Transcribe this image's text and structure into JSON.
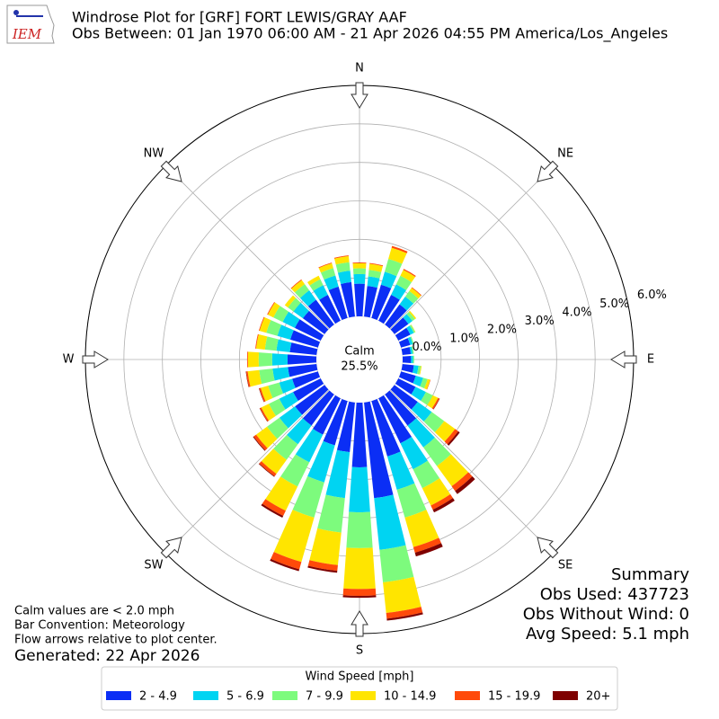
{
  "chart_data": {
    "type": "windrose",
    "logo_text": "IEM",
    "title": "Windrose Plot for [GRF] FORT LEWIS/GRAY AAF",
    "subtitle": "Obs Between: 01 Jan 1970 06:00 AM - 21 Apr 2026 04:55 PM America/Los_Angeles",
    "calm_label": "Calm",
    "calm_value": 25.5,
    "calm_value_label": "25.5%",
    "x": [
      0,
      10,
      20,
      30,
      40,
      50,
      60,
      70,
      80,
      90,
      100,
      110,
      120,
      130,
      140,
      150,
      160,
      170,
      180,
      190,
      200,
      210,
      220,
      230,
      240,
      250,
      260,
      270,
      280,
      290,
      300,
      310,
      320,
      330,
      340,
      350
    ],
    "xticks": [
      {
        "value": 0,
        "label": "N"
      },
      {
        "value": 45,
        "label": "NE"
      },
      {
        "value": 90,
        "label": "E"
      },
      {
        "value": 135,
        "label": "SE"
      },
      {
        "value": 180,
        "label": "S"
      },
      {
        "value": 225,
        "label": "SW"
      },
      {
        "value": 270,
        "label": "W"
      },
      {
        "value": 315,
        "label": "NW"
      }
    ],
    "ylim": [
      0,
      6
    ],
    "yticks": [
      {
        "value": 0,
        "label": "0.0%"
      },
      {
        "value": 1,
        "label": "1.0%"
      },
      {
        "value": 2,
        "label": "2.0%"
      },
      {
        "value": 3,
        "label": "3.0%"
      },
      {
        "value": 4,
        "label": "4.0%"
      },
      {
        "value": 5,
        "label": "5.0%"
      },
      {
        "value": 6,
        "label": "6.0%"
      }
    ],
    "grid": true,
    "legend_title": "Wind Speed [mph]",
    "legend": "bottom",
    "series": [
      {
        "name": "2 - 4.9",
        "color": "#0b2ef5",
        "values": [
          0.85,
          0.8,
          0.9,
          0.75,
          0.65,
          0.45,
          0.35,
          0.25,
          0.22,
          0.22,
          0.3,
          0.4,
          0.5,
          0.75,
          1.0,
          1.3,
          1.5,
          2.5,
          1.68,
          1.3,
          1.2,
          1.05,
          1.0,
          0.95,
          0.8,
          0.7,
          0.75,
          0.75,
          0.7,
          0.75,
          0.75,
          0.7,
          0.8,
          0.75,
          0.85,
          0.9
        ]
      },
      {
        "name": "5 - 6.9",
        "color": "#00d4f2",
        "values": [
          0.25,
          0.25,
          0.35,
          0.3,
          0.25,
          0.13,
          0.1,
          0.07,
          0.05,
          0.05,
          0.12,
          0.2,
          0.3,
          0.45,
          0.7,
          0.75,
          0.9,
          1.35,
          1.17,
          1.2,
          1.0,
          0.8,
          0.6,
          0.5,
          0.4,
          0.35,
          0.4,
          0.4,
          0.35,
          0.35,
          0.35,
          0.3,
          0.3,
          0.28,
          0.3,
          0.3
        ]
      },
      {
        "name": "7 - 9.9",
        "color": "#7dfb7d",
        "values": [
          0.15,
          0.17,
          0.35,
          0.25,
          0.18,
          0.08,
          0.04,
          0.03,
          0.03,
          0.03,
          0.06,
          0.12,
          0.2,
          0.4,
          0.6,
          0.55,
          0.75,
          0.85,
          0.93,
          0.9,
          0.95,
          0.7,
          0.5,
          0.4,
          0.3,
          0.3,
          0.35,
          0.35,
          0.3,
          0.3,
          0.27,
          0.18,
          0.2,
          0.17,
          0.2,
          0.22
        ]
      },
      {
        "name": "10 - 14.9",
        "color": "#ffe500",
        "values": [
          0.13,
          0.16,
          0.3,
          0.17,
          0.1,
          0.04,
          0.01,
          0,
          0,
          0,
          0.02,
          0.07,
          0.15,
          0.35,
          0.65,
          0.5,
          0.8,
          0.8,
          1.06,
          0.85,
          1.2,
          0.7,
          0.45,
          0.35,
          0.22,
          0.2,
          0.3,
          0.28,
          0.23,
          0.18,
          0.16,
          0.1,
          0.13,
          0.1,
          0.13,
          0.16
        ]
      },
      {
        "name": "15 - 19.9",
        "color": "#ff4a0a",
        "values": [
          0.02,
          0.02,
          0.05,
          0.03,
          0.02,
          0,
          0,
          0,
          0,
          0,
          0,
          0.01,
          0.04,
          0.1,
          0.15,
          0.12,
          0.15,
          0.15,
          0.18,
          0.15,
          0.2,
          0.15,
          0.08,
          0.08,
          0.04,
          0.04,
          0.04,
          0.02,
          0.02,
          0.02,
          0.02,
          0,
          0.02,
          0,
          0.02,
          0.02
        ]
      },
      {
        "name": "20+",
        "color": "#7f0000",
        "values": [
          0,
          0,
          0,
          0,
          0,
          0,
          0,
          0,
          0,
          0,
          0,
          0,
          0.01,
          0.05,
          0.1,
          0.08,
          0.1,
          0.05,
          0.05,
          0.05,
          0.05,
          0.05,
          0.02,
          0.02,
          0.01,
          0.01,
          0.01,
          0,
          0,
          0,
          0,
          0,
          0,
          0,
          0,
          0
        ]
      }
    ],
    "summary": [
      "Summary",
      "Obs Used: 437723",
      "Obs Without Wind: 0",
      "Avg Speed: 5.1 mph"
    ],
    "notes": [
      "Calm values are < 2.0 mph",
      "Bar Convention: Meteorology",
      "Flow arrows relative to plot center."
    ],
    "generated": "Generated: 22 Apr 2026"
  }
}
